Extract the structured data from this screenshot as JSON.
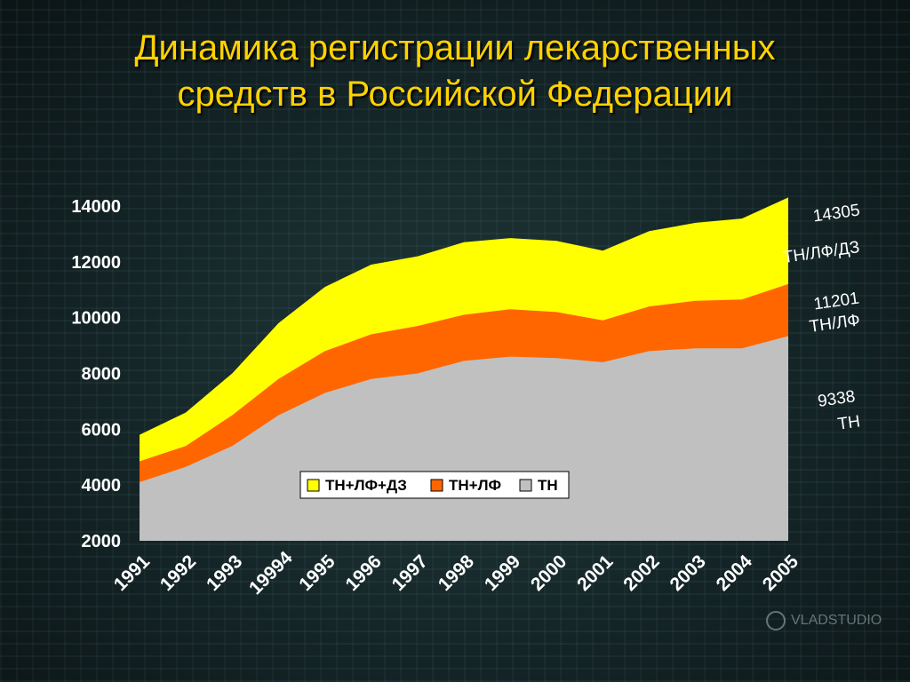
{
  "title": {
    "line1": "Динамика регистрации лекарственных",
    "line2": "средств в Российской Федерации"
  },
  "chart_data": {
    "type": "area",
    "stacked": false,
    "title": "Динамика регистрации лекарственных средств в Российской Федерации",
    "categories": [
      "1991",
      "1992",
      "1993",
      "19994",
      "1995",
      "1996",
      "1997",
      "1998",
      "1999",
      "2000",
      "2001",
      "2002",
      "2003",
      "2004",
      "2005"
    ],
    "series": [
      {
        "name": "ТН+ЛФ+ДЗ",
        "color": "#ffff00",
        "values": [
          5800,
          6600,
          8000,
          9800,
          11100,
          11900,
          12200,
          12700,
          12850,
          12750,
          12400,
          13100,
          13400,
          13550,
          14305
        ]
      },
      {
        "name": "ТН+ЛФ",
        "color": "#ff6600",
        "values": [
          4850,
          5400,
          6500,
          7800,
          8800,
          9400,
          9700,
          10100,
          10300,
          10200,
          9900,
          10400,
          10600,
          10650,
          11201
        ]
      },
      {
        "name": "ТН",
        "color": "#c0c0c0",
        "values": [
          4100,
          4650,
          5400,
          6500,
          7300,
          7800,
          8000,
          8450,
          8600,
          8550,
          8400,
          8800,
          8900,
          8900,
          9338
        ]
      }
    ],
    "yticks": [
      2000,
      4000,
      6000,
      8000,
      10000,
      12000,
      14000
    ],
    "ylim": [
      2000,
      14000
    ],
    "legend": "bottom-center inside plot",
    "annotations": [
      {
        "value": "14305",
        "label": "ТН/ЛФ/ДЗ"
      },
      {
        "value": "11201",
        "label": "ТН/ЛФ"
      },
      {
        "value": "9338",
        "label": "ТН"
      }
    ]
  },
  "watermark": "VLADSTUDIO"
}
